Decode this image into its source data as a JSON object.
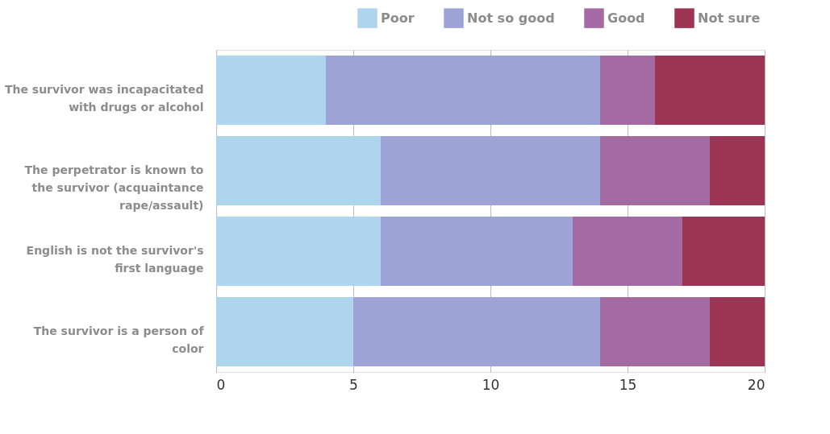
{
  "chart_data": {
    "type": "bar",
    "orientation": "horizontal",
    "stacked": true,
    "categories": [
      "The survivor was incapacitated with drugs or alcohol",
      "The perpetrator is known to the survivor (acquaintance rape/assault)",
      "English is not the survivor's first language",
      "The survivor is a person of color"
    ],
    "series": [
      {
        "name": "Poor",
        "color": "#afd4ed",
        "values": [
          4,
          6,
          6,
          5
        ]
      },
      {
        "name": "Not so good",
        "color": "#9ea3d6",
        "values": [
          10,
          8,
          7,
          9
        ]
      },
      {
        "name": "Good",
        "color": "#a46aa3",
        "values": [
          2,
          4,
          4,
          4
        ]
      },
      {
        "name": "Not sure",
        "color": "#9b3553",
        "values": [
          4,
          2,
          3,
          2
        ]
      }
    ],
    "xlim": [
      0,
      20
    ],
    "xticks": [
      0,
      5,
      10,
      15,
      20
    ],
    "grid": "x",
    "legend": "top right"
  }
}
